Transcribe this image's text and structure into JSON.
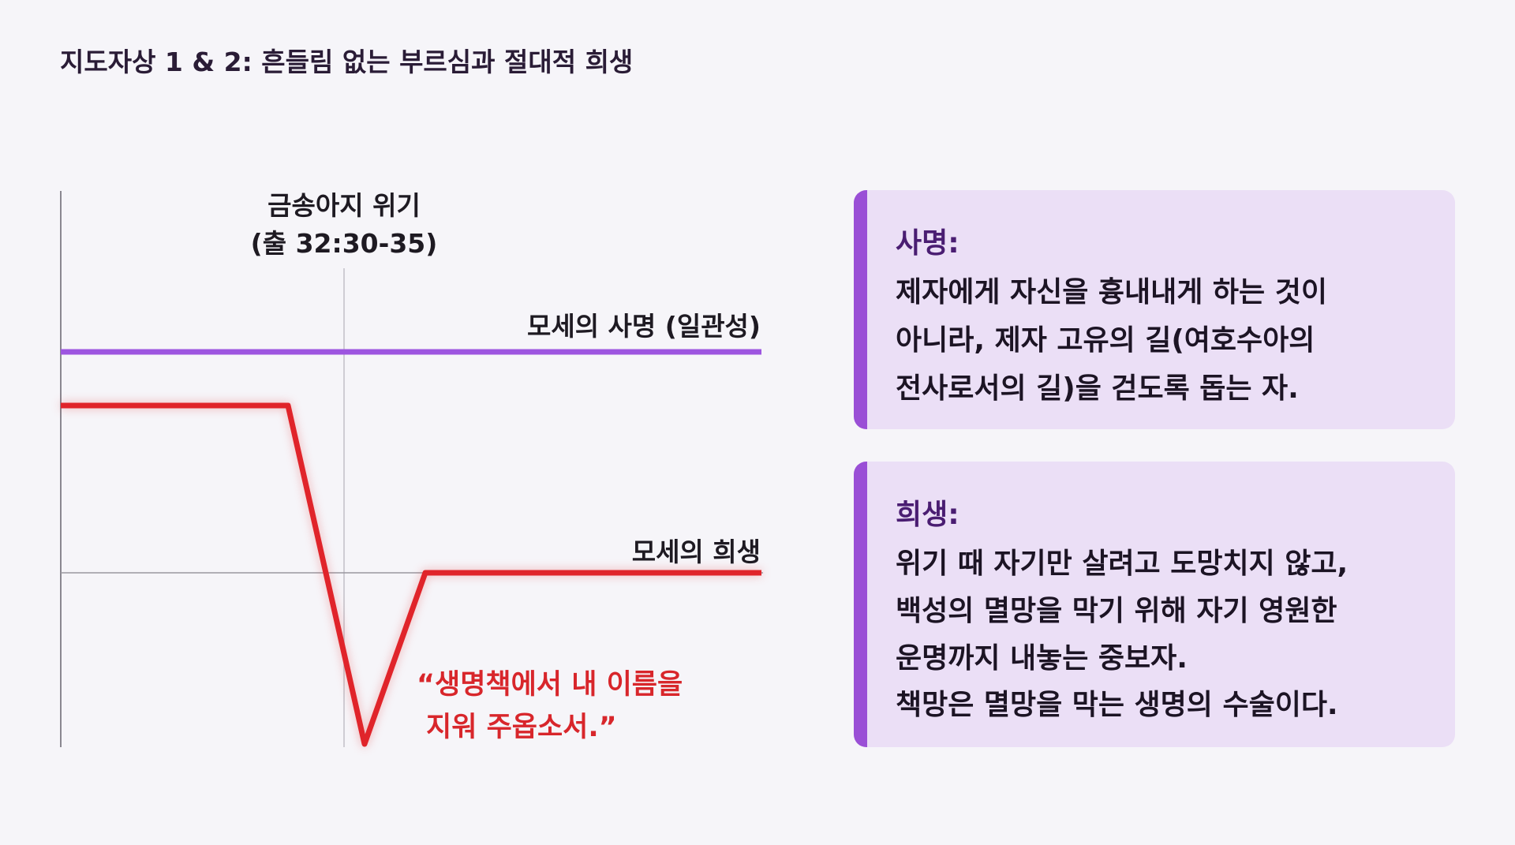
{
  "header": {
    "title": "지도자상 1 & 2: 흔들림 없는 부르심과 절대적 희생"
  },
  "diagram": {
    "crisis_label": [
      "금송아지 위기",
      "(출 32:30-35)"
    ],
    "mission_line_label": "모세의 사명 (일관성)",
    "sacrifice_line_label": "모세의 희생",
    "quote": [
      "“생명책에서 내 이름을",
      "지워 주옵소서.”"
    ]
  },
  "cards": [
    {
      "heading": "사명:",
      "lines": [
        "제자에게 자신을 흉내내게 하는 것이",
        "아니라, 제자 고유의 길(여호수아의",
        "전사로서의 길)을 걷도록 돕는 자."
      ]
    },
    {
      "heading": "희생:",
      "lines": [
        "위기 때 자기만 살려고 도망치지 않고,",
        "백성의 멸망을 막기 위해 자기 영원한",
        "운명까지 내놓는 중보자.",
        "책망은 멸망을 막는 생명의 수술이다."
      ]
    }
  ]
}
